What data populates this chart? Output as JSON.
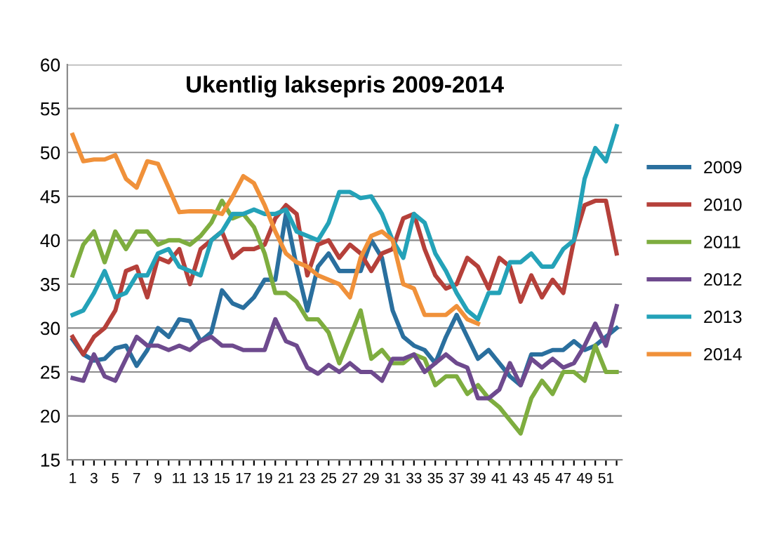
{
  "chart_data": {
    "type": "line",
    "title": "Ukentlig laksepris 2009-2014",
    "categories": [
      "1",
      null,
      "3",
      null,
      "5",
      null,
      "7",
      null,
      "9",
      null,
      "11",
      null,
      "13",
      null,
      "15",
      null,
      "17",
      null,
      "19",
      null,
      "21",
      null,
      "23",
      null,
      "25",
      null,
      "27",
      null,
      "29",
      null,
      "31",
      null,
      "33",
      null,
      "35",
      null,
      "37",
      null,
      "39",
      null,
      "41",
      null,
      "43",
      null,
      "45",
      null,
      "47",
      null,
      "49",
      null,
      "51",
      null
    ],
    "series": [
      {
        "name": "2009",
        "color": "#2a6f9e",
        "values": [
          28.7,
          27,
          26.3,
          26.5,
          27.7,
          28,
          25.7,
          27.5,
          30,
          29,
          31,
          30.8,
          28.5,
          29.5,
          34.3,
          32.8,
          32.3,
          33.5,
          35.5,
          35.5,
          43,
          37,
          32,
          37,
          38.5,
          36.5,
          36.5,
          36.5,
          40,
          38,
          32,
          29,
          28,
          27.5,
          26,
          29,
          31.5,
          29,
          26.5,
          27.5,
          26,
          24.5,
          23.5,
          27,
          27,
          27.5,
          27.5,
          28.5,
          27.5,
          28,
          29,
          30
        ]
      },
      {
        "name": "2010",
        "color": "#b5403a",
        "values": [
          29,
          27,
          29,
          30,
          32,
          36.5,
          37,
          33.5,
          38,
          37.5,
          39,
          35,
          39,
          40,
          41,
          38,
          39,
          39,
          39.5,
          42.5,
          44,
          43,
          36,
          39.5,
          40,
          38,
          39.5,
          38.5,
          36.5,
          38.5,
          39,
          42.5,
          43,
          39,
          36,
          34.5,
          35,
          38,
          37,
          34.5,
          38,
          37,
          33,
          36,
          33.5,
          35.5,
          34,
          40,
          44,
          44.5,
          44.5,
          38.5
        ]
      },
      {
        "name": "2011",
        "color": "#7ead3f",
        "values": [
          36,
          39.5,
          41,
          37.5,
          41,
          39,
          41,
          41,
          39.5,
          40,
          40,
          39.5,
          40.5,
          42,
          44.5,
          42.5,
          43,
          41.5,
          38.5,
          34,
          34,
          33,
          31,
          31,
          29.5,
          26,
          29,
          32,
          26.5,
          27.5,
          26,
          26,
          27,
          26.5,
          23.5,
          24.5,
          24.5,
          22.5,
          23.5,
          22,
          21,
          19.5,
          18,
          22,
          24,
          22.5,
          25,
          25,
          24,
          28,
          25,
          25
        ]
      },
      {
        "name": "2012",
        "color": "#6e4a8e",
        "values": [
          24.3,
          24,
          27,
          24.5,
          24,
          26.5,
          29,
          28,
          28,
          27.5,
          28,
          27.5,
          28.5,
          29,
          28,
          28,
          27.5,
          27.5,
          27.5,
          31,
          28.5,
          28,
          25.5,
          24.8,
          25.8,
          25,
          26,
          25,
          25,
          24,
          26.5,
          26.5,
          27,
          25,
          26,
          27,
          26,
          25.5,
          22,
          22,
          23,
          26,
          23.5,
          26.5,
          25.5,
          26.5,
          25.5,
          26,
          28,
          30.5,
          28,
          32.5
        ]
      },
      {
        "name": "2013",
        "color": "#24a2b8",
        "values": [
          31.5,
          32,
          34,
          36.5,
          33.5,
          34,
          36,
          36,
          38.5,
          39,
          37,
          36.5,
          36,
          40,
          41,
          43,
          43,
          43.5,
          43,
          43,
          43.5,
          41,
          40.5,
          40,
          42,
          45.5,
          45.5,
          44.8,
          45,
          43,
          40,
          38,
          43,
          42,
          38.5,
          36.5,
          34,
          32,
          31,
          34,
          34,
          37.5,
          37.5,
          38.5,
          37,
          37,
          39,
          40,
          47,
          50.5,
          49,
          53
        ]
      },
      {
        "name": "2014",
        "color": "#f0913a",
        "values": [
          52,
          49,
          49.2,
          49.2,
          49.7,
          47,
          46,
          49,
          48.7,
          46,
          43.2,
          43.3,
          43.3,
          43.3,
          43,
          45,
          47.3,
          46.5,
          44,
          41,
          38.5,
          37.5,
          37,
          36,
          35.5,
          35,
          33.5,
          38,
          40.5,
          41,
          40,
          35,
          34.5,
          31.5,
          31.5,
          31.5,
          32.5,
          31,
          30.5,
          null,
          null,
          null,
          null,
          null,
          null,
          null,
          null,
          null,
          null,
          null,
          null,
          null
        ]
      }
    ],
    "ylim": [
      15,
      60
    ],
    "yticks": [
      15,
      20,
      25,
      30,
      35,
      40,
      45,
      50,
      55,
      60
    ],
    "grid": "y",
    "legend": "right",
    "marker": "none",
    "line_style": "solid"
  }
}
